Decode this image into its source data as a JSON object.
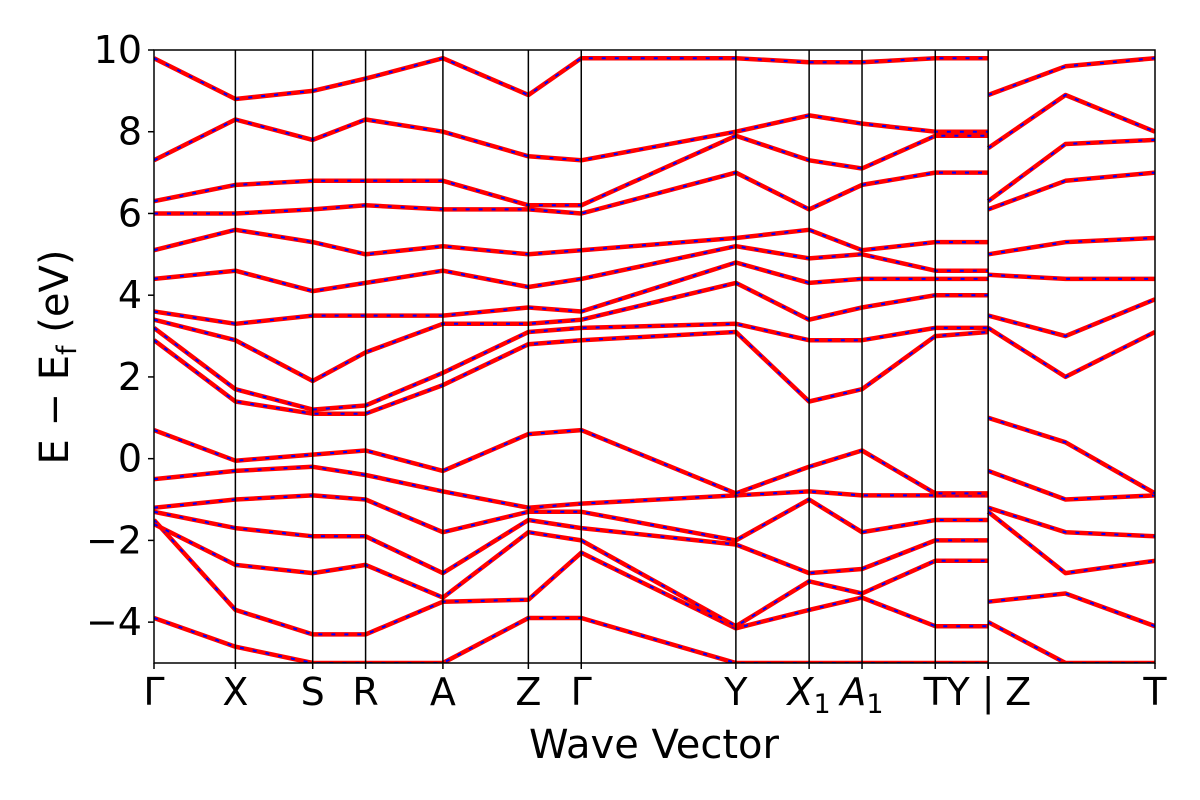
{
  "chart_data": {
    "type": "line",
    "title": "",
    "xlabel": "Wave Vector",
    "ylabel": "E − E",
    "ylabel_sub": "f",
    "ylabel_unit": " (eV)",
    "ylim": [
      -5,
      10
    ],
    "yticks": [
      -4,
      -2,
      0,
      2,
      4,
      6,
      8,
      10
    ],
    "ytick_labels": [
      "−4",
      "−2",
      "0",
      "2",
      "4",
      "6",
      "8",
      "10"
    ],
    "grid": false,
    "legend": "none",
    "xlim": [
      0,
      12.3
    ],
    "kpoints": [
      {
        "pos": 0.0,
        "label": "Γ"
      },
      {
        "pos": 1.0,
        "label": "X"
      },
      {
        "pos": 1.95,
        "label": "S"
      },
      {
        "pos": 2.6,
        "label": "R"
      },
      {
        "pos": 3.55,
        "label": "A"
      },
      {
        "pos": 4.6,
        "label": "Z"
      },
      {
        "pos": 5.25,
        "label": "Γ"
      },
      {
        "pos": 7.15,
        "label": "Y"
      },
      {
        "pos": 8.05,
        "label": "X",
        "sub": "1"
      },
      {
        "pos": 8.7,
        "label": "A",
        "sub": "1"
      },
      {
        "pos": 9.6,
        "label": "T"
      },
      {
        "pos": 10.25,
        "label": "Y"
      },
      {
        "pos": 10.25,
        "label": "|"
      },
      {
        "pos": 10.25,
        "label": "Z"
      },
      {
        "pos": 12.3,
        "label": "T"
      }
    ],
    "separator_segments": [
      {
        "x_start": 0.0,
        "x_end": 10.25
      },
      {
        "x_start": 10.25,
        "x_end": 12.3
      }
    ],
    "series_style": [
      {
        "name": "",
        "color": "#ff0000",
        "style": "solid"
      },
      {
        "name": "",
        "color": "#0000ff",
        "style": "dashed"
      }
    ],
    "bands": [
      {
        "x": [
          0,
          1,
          1.95,
          2.6,
          3.55,
          4.6,
          5.25,
          7.15,
          8.05,
          8.7,
          9.6,
          10.25
        ],
        "y": [
          -3.9,
          -4.6,
          -5.0,
          -5.0,
          -5.0,
          -3.9,
          -3.9,
          -5.0,
          -5.0,
          -5.0,
          -5.0,
          -5.0
        ]
      },
      {
        "x": [
          0,
          1,
          1.95,
          2.6,
          3.55,
          4.6,
          5.25,
          7.15,
          8.05,
          8.7,
          9.6,
          10.25
        ],
        "y": [
          -1.5,
          -3.7,
          -4.3,
          -4.3,
          -3.5,
          -3.45,
          -2.3,
          -4.15,
          -3.7,
          -3.4,
          -4.1,
          -4.1
        ]
      },
      {
        "x": [
          0,
          1,
          1.95,
          2.6,
          3.55,
          4.6,
          5.25,
          7.15,
          8.05,
          8.7,
          9.6,
          10.25
        ],
        "y": [
          -1.6,
          -2.6,
          -2.8,
          -2.6,
          -3.4,
          -1.8,
          -2.0,
          -4.1,
          -3.0,
          -3.3,
          -2.5,
          -2.5
        ]
      },
      {
        "x": [
          0,
          1,
          1.95,
          2.6,
          3.55,
          4.6,
          5.25,
          7.15,
          8.05,
          8.7,
          9.6,
          10.25
        ],
        "y": [
          -1.3,
          -1.7,
          -1.9,
          -1.9,
          -2.8,
          -1.5,
          -1.7,
          -2.1,
          -2.8,
          -2.7,
          -2.0,
          -2.0
        ]
      },
      {
        "x": [
          0,
          1,
          1.95,
          2.6,
          3.55,
          4.6,
          5.25,
          7.15,
          8.05,
          8.7,
          9.6,
          10.25
        ],
        "y": [
          -1.2,
          -1.0,
          -0.9,
          -1.0,
          -1.8,
          -1.3,
          -1.3,
          -2.0,
          -1.0,
          -1.8,
          -1.5,
          -1.5
        ]
      },
      {
        "x": [
          0,
          1,
          1.95,
          2.6,
          3.55,
          4.6,
          5.25,
          7.15,
          8.05,
          8.7,
          9.6,
          10.25
        ],
        "y": [
          -0.5,
          -0.3,
          -0.2,
          -0.4,
          -0.8,
          -1.2,
          -1.1,
          -0.9,
          -0.8,
          -0.9,
          -0.9,
          -0.9
        ]
      },
      {
        "x": [
          0,
          1,
          1.95,
          2.6,
          3.55,
          4.6,
          5.25,
          7.15,
          8.05,
          8.7,
          9.6,
          10.25
        ],
        "y": [
          0.7,
          -0.05,
          0.1,
          0.2,
          -0.3,
          0.6,
          0.7,
          -0.85,
          -0.2,
          0.2,
          -0.85,
          -0.85
        ]
      },
      {
        "x": [
          0,
          1,
          1.95,
          2.6,
          3.55,
          4.6,
          5.25,
          7.15,
          8.05,
          8.7,
          9.6,
          10.25
        ],
        "y": [
          2.9,
          1.4,
          1.1,
          1.1,
          1.8,
          2.8,
          2.9,
          3.1,
          1.4,
          1.7,
          3.0,
          3.1
        ]
      },
      {
        "x": [
          0,
          1,
          1.95,
          2.6,
          3.55,
          4.6,
          5.25,
          7.15,
          8.05,
          8.7,
          9.6,
          10.25
        ],
        "y": [
          3.2,
          1.7,
          1.2,
          1.3,
          2.1,
          3.1,
          3.2,
          3.3,
          2.9,
          2.9,
          3.2,
          3.2
        ]
      },
      {
        "x": [
          0,
          1,
          1.95,
          2.6,
          3.55,
          4.6,
          5.25,
          7.15,
          8.05,
          8.7,
          9.6,
          10.25
        ],
        "y": [
          3.4,
          2.9,
          1.9,
          2.6,
          3.3,
          3.3,
          3.4,
          4.3,
          3.4,
          3.7,
          4.0,
          4.0
        ]
      },
      {
        "x": [
          0,
          1,
          1.95,
          2.6,
          3.55,
          4.6,
          5.25,
          7.15,
          8.05,
          8.7,
          9.6,
          10.25
        ],
        "y": [
          3.6,
          3.3,
          3.5,
          3.5,
          3.5,
          3.7,
          3.6,
          4.8,
          4.3,
          4.4,
          4.4,
          4.4
        ]
      },
      {
        "x": [
          0,
          1,
          1.95,
          2.6,
          3.55,
          4.6,
          5.25,
          7.15,
          8.05,
          8.7,
          9.6,
          10.25
        ],
        "y": [
          4.4,
          4.6,
          4.1,
          4.3,
          4.6,
          4.2,
          4.4,
          5.2,
          4.9,
          5.0,
          4.6,
          4.6
        ]
      },
      {
        "x": [
          0,
          1,
          1.95,
          2.6,
          3.55,
          4.6,
          5.25,
          7.15,
          8.05,
          8.7,
          9.6,
          10.25
        ],
        "y": [
          5.1,
          5.6,
          5.3,
          5.0,
          5.2,
          5.0,
          5.1,
          5.4,
          5.6,
          5.1,
          5.3,
          5.3
        ]
      },
      {
        "x": [
          0,
          1,
          1.95,
          2.6,
          3.55,
          4.6,
          5.25,
          7.15,
          8.05,
          8.7,
          9.6,
          10.25
        ],
        "y": [
          6.0,
          6.0,
          6.1,
          6.2,
          6.1,
          6.1,
          6.0,
          7.0,
          6.1,
          6.7,
          7.0,
          7.0
        ]
      },
      {
        "x": [
          0,
          1,
          1.95,
          2.6,
          3.55,
          4.6,
          5.25,
          7.15,
          8.05,
          8.7,
          9.6,
          10.25
        ],
        "y": [
          6.3,
          6.7,
          6.8,
          6.8,
          6.8,
          6.2,
          6.2,
          7.9,
          7.3,
          7.1,
          7.9,
          7.9
        ]
      },
      {
        "x": [
          0,
          1,
          1.95,
          2.6,
          3.55,
          4.6,
          5.25,
          7.15,
          8.05,
          8.7,
          9.6,
          10.25
        ],
        "y": [
          7.3,
          8.3,
          7.8,
          8.3,
          8.0,
          7.4,
          7.3,
          8.0,
          8.4,
          8.2,
          8.0,
          8.0
        ]
      },
      {
        "x": [
          0,
          1,
          1.95,
          2.6,
          3.55,
          4.6,
          5.25,
          7.15,
          8.05,
          8.7,
          9.6,
          10.25
        ],
        "y": [
          9.8,
          8.8,
          9.0,
          9.3,
          9.8,
          8.9,
          9.8,
          9.8,
          9.7,
          9.7,
          9.8,
          9.8
        ]
      },
      {
        "x": [
          10.25,
          11.2,
          12.3
        ],
        "y": [
          -4.0,
          -5.0,
          -5.0
        ]
      },
      {
        "x": [
          10.25,
          11.2,
          12.3
        ],
        "y": [
          -3.5,
          -3.3,
          -4.1
        ]
      },
      {
        "x": [
          10.25,
          11.2,
          12.3
        ],
        "y": [
          -1.3,
          -2.8,
          -2.5
        ]
      },
      {
        "x": [
          10.25,
          11.2,
          12.3
        ],
        "y": [
          -1.2,
          -1.8,
          -1.9
        ]
      },
      {
        "x": [
          10.25,
          11.2,
          12.3
        ],
        "y": [
          -0.3,
          -1.0,
          -0.9
        ]
      },
      {
        "x": [
          10.25,
          11.2,
          12.3
        ],
        "y": [
          1.0,
          0.4,
          -0.85
        ]
      },
      {
        "x": [
          10.25,
          11.2,
          12.3
        ],
        "y": [
          3.2,
          2.0,
          3.1
        ]
      },
      {
        "x": [
          10.25,
          11.2,
          12.3
        ],
        "y": [
          3.5,
          3.0,
          3.9
        ]
      },
      {
        "x": [
          10.25,
          11.2,
          12.3
        ],
        "y": [
          4.5,
          4.4,
          4.4
        ]
      },
      {
        "x": [
          10.25,
          11.2,
          12.3
        ],
        "y": [
          5.0,
          5.3,
          5.4
        ]
      },
      {
        "x": [
          10.25,
          11.2,
          12.3
        ],
        "y": [
          6.1,
          6.8,
          7.0
        ]
      },
      {
        "x": [
          10.25,
          11.2,
          12.3
        ],
        "y": [
          6.3,
          7.7,
          7.8
        ]
      },
      {
        "x": [
          10.25,
          11.2,
          12.3
        ],
        "y": [
          7.6,
          8.9,
          8.0
        ]
      },
      {
        "x": [
          10.25,
          11.2,
          12.3
        ],
        "y": [
          8.9,
          9.6,
          9.8
        ]
      }
    ]
  }
}
